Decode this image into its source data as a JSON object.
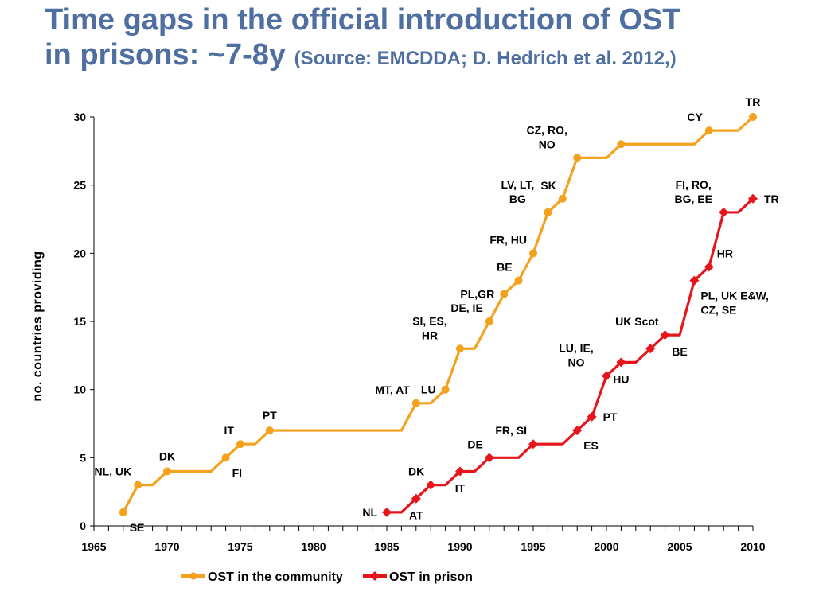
{
  "slide": {
    "title_line1": "Time gaps in the official introduction of OST",
    "title_line2_main": "in prisons: ~7-8y",
    "title_line2_source": "(Source: EMCDDA; D. Hedrich et al. 2012,)"
  },
  "chart_data": {
    "type": "line",
    "ylabel": "no. countries providing",
    "xlabel": "",
    "xlim": [
      1965,
      2010
    ],
    "ylim": [
      0,
      30
    ],
    "x_ticks": [
      1965,
      1970,
      1975,
      1980,
      1985,
      1990,
      1995,
      2000,
      2005,
      2010
    ],
    "y_ticks": [
      0,
      5,
      10,
      15,
      20,
      25,
      30
    ],
    "colors": {
      "community": "#f4a21e",
      "prison": "#e8141b"
    },
    "series": [
      {
        "name": "OST in the community",
        "marker": "circle",
        "points": [
          {
            "x": 1967,
            "y": 1
          },
          {
            "x": 1968,
            "y": 3
          },
          {
            "x": 1969,
            "y": 3
          },
          {
            "x": 1970,
            "y": 4
          },
          {
            "x": 1971,
            "y": 4
          },
          {
            "x": 1972,
            "y": 4
          },
          {
            "x": 1973,
            "y": 4
          },
          {
            "x": 1974,
            "y": 5
          },
          {
            "x": 1975,
            "y": 6
          },
          {
            "x": 1976,
            "y": 6
          },
          {
            "x": 1977,
            "y": 7
          },
          {
            "x": 1978,
            "y": 7
          },
          {
            "x": 1979,
            "y": 7
          },
          {
            "x": 1980,
            "y": 7
          },
          {
            "x": 1981,
            "y": 7
          },
          {
            "x": 1982,
            "y": 7
          },
          {
            "x": 1983,
            "y": 7
          },
          {
            "x": 1984,
            "y": 7
          },
          {
            "x": 1985,
            "y": 7
          },
          {
            "x": 1986,
            "y": 7
          },
          {
            "x": 1987,
            "y": 9
          },
          {
            "x": 1988,
            "y": 9
          },
          {
            "x": 1989,
            "y": 10
          },
          {
            "x": 1990,
            "y": 13
          },
          {
            "x": 1991,
            "y": 13
          },
          {
            "x": 1992,
            "y": 15
          },
          {
            "x": 1993,
            "y": 17
          },
          {
            "x": 1994,
            "y": 18
          },
          {
            "x": 1995,
            "y": 20
          },
          {
            "x": 1996,
            "y": 23
          },
          {
            "x": 1997,
            "y": 24
          },
          {
            "x": 1998,
            "y": 27
          },
          {
            "x": 1999,
            "y": 27
          },
          {
            "x": 2000,
            "y": 27
          },
          {
            "x": 2001,
            "y": 28
          },
          {
            "x": 2002,
            "y": 28
          },
          {
            "x": 2003,
            "y": 28
          },
          {
            "x": 2004,
            "y": 28
          },
          {
            "x": 2005,
            "y": 28
          },
          {
            "x": 2006,
            "y": 28
          },
          {
            "x": 2007,
            "y": 29
          },
          {
            "x": 2008,
            "y": 29
          },
          {
            "x": 2009,
            "y": 29
          },
          {
            "x": 2010,
            "y": 30
          }
        ]
      },
      {
        "name": "OST in prison",
        "marker": "diamond",
        "points": [
          {
            "x": 1985,
            "y": 1
          },
          {
            "x": 1986,
            "y": 1
          },
          {
            "x": 1987,
            "y": 2
          },
          {
            "x": 1988,
            "y": 3
          },
          {
            "x": 1989,
            "y": 3
          },
          {
            "x": 1990,
            "y": 4
          },
          {
            "x": 1991,
            "y": 4
          },
          {
            "x": 1992,
            "y": 5
          },
          {
            "x": 1993,
            "y": 5
          },
          {
            "x": 1994,
            "y": 5
          },
          {
            "x": 1995,
            "y": 6
          },
          {
            "x": 1996,
            "y": 6
          },
          {
            "x": 1997,
            "y": 6
          },
          {
            "x": 1998,
            "y": 7
          },
          {
            "x": 1999,
            "y": 8
          },
          {
            "x": 2000,
            "y": 11
          },
          {
            "x": 2001,
            "y": 12
          },
          {
            "x": 2002,
            "y": 12
          },
          {
            "x": 2003,
            "y": 13
          },
          {
            "x": 2004,
            "y": 14
          },
          {
            "x": 2005,
            "y": 14
          },
          {
            "x": 2006,
            "y": 18
          },
          {
            "x": 2007,
            "y": 19
          },
          {
            "x": 2008,
            "y": 23
          },
          {
            "x": 2009,
            "y": 23
          },
          {
            "x": 2010,
            "y": 24
          }
        ]
      }
    ],
    "annotations": [
      {
        "series": "community",
        "x": 1967,
        "y": 1,
        "text": "SE",
        "pos": "below-right"
      },
      {
        "series": "community",
        "x": 1968,
        "y": 3,
        "text": "NL, UK",
        "pos": "above-left"
      },
      {
        "series": "community",
        "x": 1970,
        "y": 4,
        "text": "DK",
        "pos": "above"
      },
      {
        "series": "community",
        "x": 1974,
        "y": 5,
        "text": "FI",
        "pos": "below-right"
      },
      {
        "series": "community",
        "x": 1975,
        "y": 6,
        "text": "IT",
        "pos": "above-left"
      },
      {
        "series": "community",
        "x": 1977,
        "y": 7,
        "text": "PT",
        "pos": "above"
      },
      {
        "series": "community",
        "x": 1987,
        "y": 9,
        "text": "MT, AT",
        "pos": "above-left"
      },
      {
        "series": "community",
        "x": 1989,
        "y": 10,
        "text": "LU",
        "pos": "left"
      },
      {
        "series": "community",
        "x": 1990,
        "y": 13,
        "text": "SI, ES,\nHR",
        "pos": "above-left"
      },
      {
        "series": "community",
        "x": 1992,
        "y": 15,
        "text": "DE, IE",
        "pos": "above-left"
      },
      {
        "series": "community",
        "x": 1993,
        "y": 17,
        "text": "PL,GR",
        "pos": "left"
      },
      {
        "series": "community",
        "x": 1994,
        "y": 18,
        "text": "BE",
        "pos": "above-left"
      },
      {
        "series": "community",
        "x": 1995,
        "y": 20,
        "text": "FR, HU",
        "pos": "above-left"
      },
      {
        "series": "community",
        "x": 1996,
        "y": 23,
        "text": "LV, LT,\nBG",
        "pos": "above-left"
      },
      {
        "series": "community",
        "x": 1997,
        "y": 24,
        "text": "SK",
        "pos": "above-left"
      },
      {
        "series": "community",
        "x": 1998,
        "y": 27,
        "text": "CZ, RO,\nNO",
        "pos": "above-left"
      },
      {
        "series": "community",
        "x": 2007,
        "y": 29,
        "text": "CY",
        "pos": "above-left"
      },
      {
        "series": "community",
        "x": 2010,
        "y": 30,
        "text": "TR",
        "pos": "above"
      },
      {
        "series": "prison",
        "x": 1985,
        "y": 1,
        "text": "NL",
        "pos": "left"
      },
      {
        "series": "prison",
        "x": 1987,
        "y": 2,
        "text": "AT",
        "pos": "below"
      },
      {
        "series": "prison",
        "x": 1988,
        "y": 3,
        "text": "DK",
        "pos": "above-left"
      },
      {
        "series": "prison",
        "x": 1990,
        "y": 4,
        "text": "IT",
        "pos": "below"
      },
      {
        "series": "prison",
        "x": 1992,
        "y": 5,
        "text": "DE",
        "pos": "above-left"
      },
      {
        "series": "prison",
        "x": 1995,
        "y": 6,
        "text": "FR, SI",
        "pos": "above-left"
      },
      {
        "series": "prison",
        "x": 1998,
        "y": 7,
        "text": "ES",
        "pos": "below-right"
      },
      {
        "series": "prison",
        "x": 1999,
        "y": 8,
        "text": "PT",
        "pos": "right"
      },
      {
        "series": "prison",
        "x": 2000,
        "y": 11,
        "text": "LU, IE,\nNO",
        "pos": "above-left"
      },
      {
        "series": "prison",
        "x": 2001,
        "y": 12,
        "text": "HU",
        "pos": "below"
      },
      {
        "series": "prison",
        "x": 2004,
        "y": 14,
        "text": "UK Scot",
        "pos": "above-left"
      },
      {
        "series": "prison",
        "x": 2005,
        "y": 14,
        "text": "BE",
        "pos": "below"
      },
      {
        "series": "prison",
        "x": 2006,
        "y": 18,
        "text": "PL, UK E&W,\nCZ, SE",
        "pos": "below-right"
      },
      {
        "series": "prison",
        "x": 2007,
        "y": 19,
        "text": "HR",
        "pos": "above-right"
      },
      {
        "series": "prison",
        "x": 2008,
        "y": 23,
        "text": "FI, RO,\nBG, EE",
        "pos": "above-left"
      },
      {
        "series": "prison",
        "x": 2010,
        "y": 24,
        "text": "TR",
        "pos": "right"
      }
    ],
    "legend": {
      "placement": "bottom",
      "entries": [
        "OST in the community",
        "OST in prison"
      ]
    }
  }
}
